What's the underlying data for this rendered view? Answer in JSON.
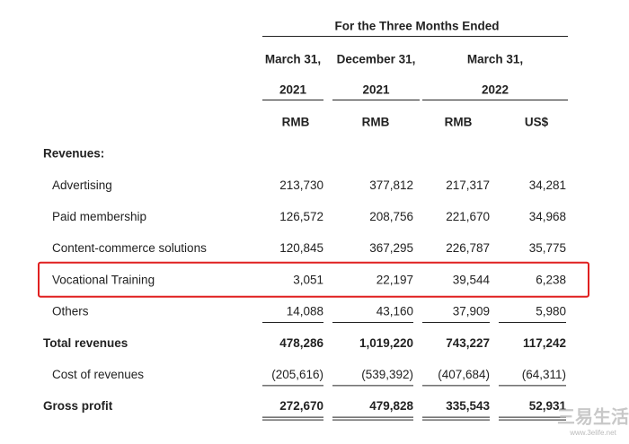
{
  "header": {
    "period": "For the Three Months Ended",
    "column_groups": [
      {
        "date": "March 31,",
        "year": "2021"
      },
      {
        "date": "December 31,",
        "year": "2021"
      },
      {
        "date": "March 31,",
        "year": "2022"
      }
    ],
    "currencies": [
      "RMB",
      "RMB",
      "RMB",
      "US$"
    ]
  },
  "rows": [
    {
      "label": "Revenues:",
      "bold": true
    },
    {
      "label": "Advertising",
      "values": [
        "213,730",
        "377,812",
        "217,317",
        "34,281"
      ]
    },
    {
      "label": "Paid membership",
      "values": [
        "126,572",
        "208,756",
        "221,670",
        "34,968"
      ]
    },
    {
      "label": "Content-commerce solutions",
      "values": [
        "120,845",
        "367,295",
        "226,787",
        "35,775"
      ]
    },
    {
      "label": "Vocational Training",
      "values": [
        "3,051",
        "22,197",
        "39,544",
        "6,238"
      ],
      "highlight": true
    },
    {
      "label": "Others",
      "values": [
        "14,088",
        "43,160",
        "37,909",
        "5,980"
      ],
      "underline": "single"
    },
    {
      "label": "Total revenues",
      "values": [
        "478,286",
        "1,019,220",
        "743,227",
        "117,242"
      ],
      "bold": true
    },
    {
      "label": "Cost of revenues",
      "values": [
        "(205,616)",
        "(539,392)",
        "(407,684)",
        "(64,311)"
      ],
      "underline": "single"
    },
    {
      "label": "Gross profit",
      "values": [
        "272,670",
        "479,828",
        "335,543",
        "52,931"
      ],
      "bold": true,
      "underline": "double"
    }
  ],
  "watermark": {
    "name": "三易生活",
    "url": "www.3elife.net"
  }
}
